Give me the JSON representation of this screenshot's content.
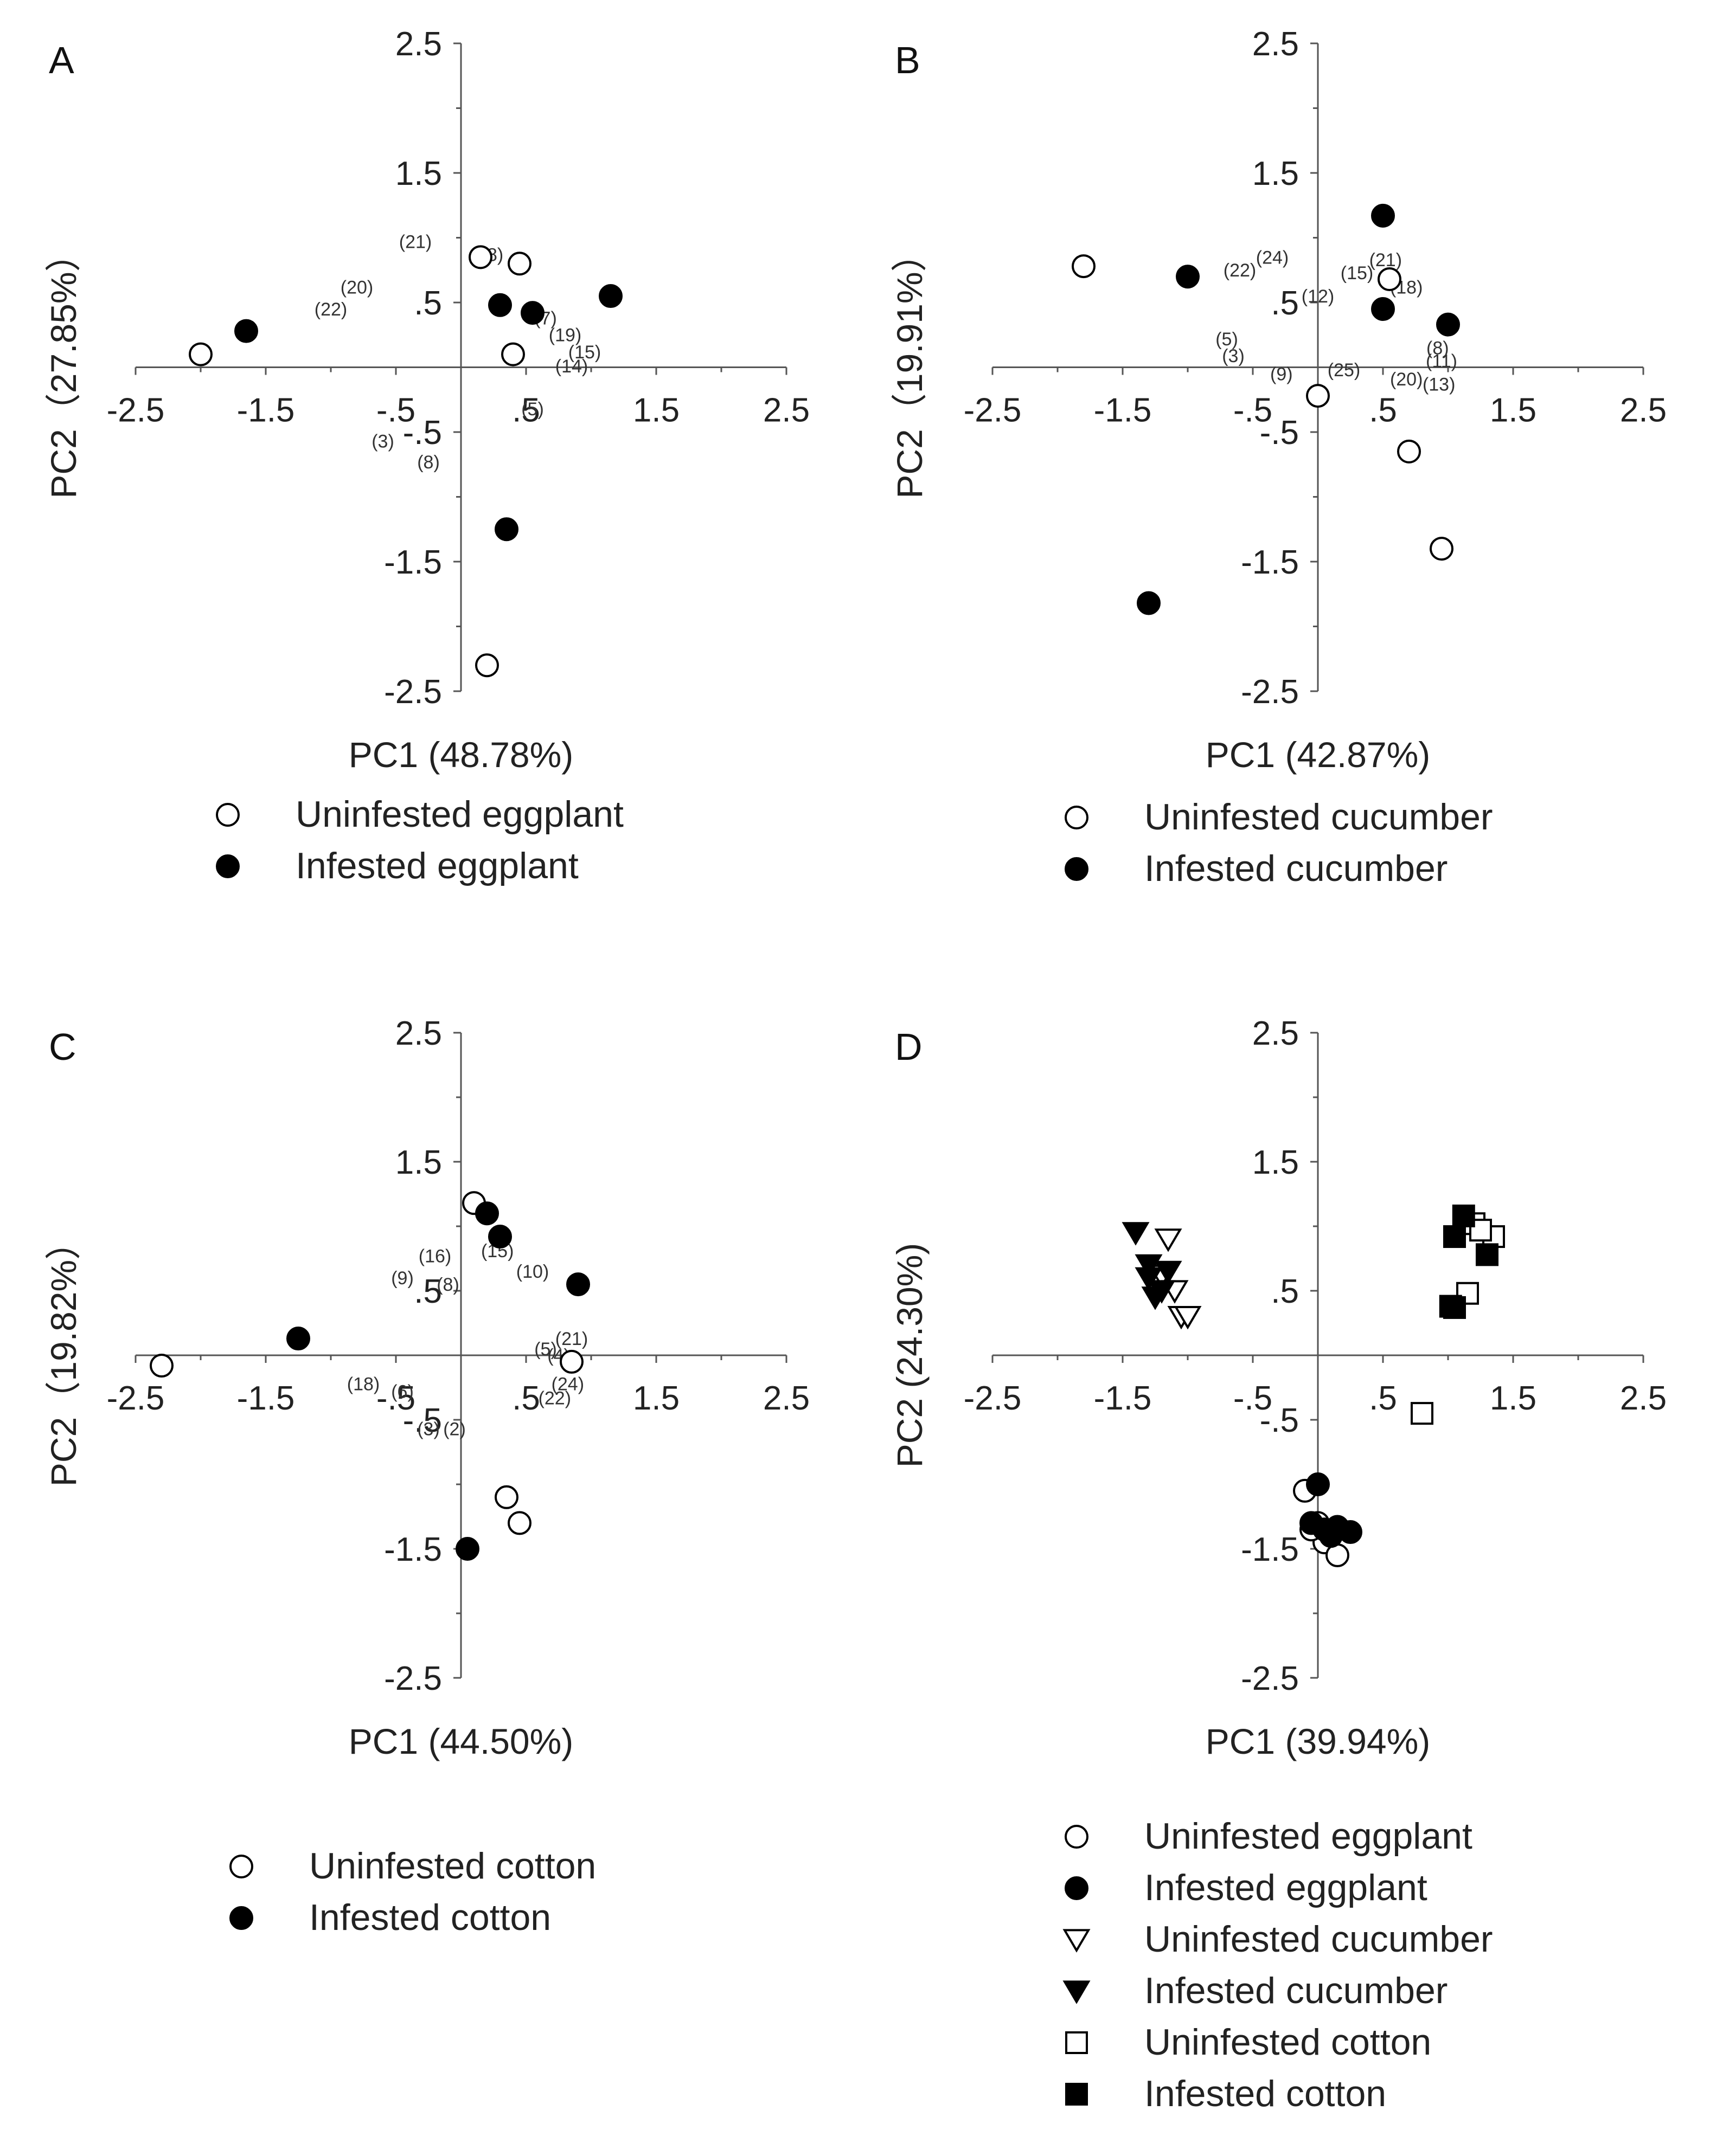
{
  "chart_data": [
    {
      "type": "scatter",
      "panel_label": "A",
      "xlabel": "PC1 (48.78%)",
      "ylabel": "PC2（27.85%）",
      "xlim": [
        -2.5,
        2.5
      ],
      "ylim": [
        -2.5,
        2.5
      ],
      "xticks": [
        "-2.5",
        "-1.5",
        "-.5",
        ".5",
        "1.5",
        "2.5"
      ],
      "yticks": [
        "2.5",
        "1.5",
        ".5",
        "-.5",
        "-1.5",
        "-2.5"
      ],
      "series": [
        {
          "name": "Uninfested eggplant",
          "marker": "circle-open",
          "x": [
            -2.0,
            0.15,
            0.45,
            0.4,
            0.2
          ],
          "y": [
            0.1,
            0.85,
            0.8,
            0.1,
            -2.3
          ]
        },
        {
          "name": "Infested eggplant",
          "marker": "circle-filled",
          "x": [
            -1.65,
            0.3,
            0.55,
            1.15,
            0.35
          ],
          "y": [
            0.28,
            0.48,
            0.42,
            0.55,
            -1.25
          ]
        }
      ],
      "labels": [
        {
          "text": "(21)",
          "x": -0.35,
          "y": 0.92
        },
        {
          "text": "(18)",
          "x": 0.2,
          "y": 0.82
        },
        {
          "text": "(20)",
          "x": -0.8,
          "y": 0.57
        },
        {
          "text": "(22)",
          "x": -1.0,
          "y": 0.4
        },
        {
          "text": "(7)",
          "x": 0.65,
          "y": 0.33
        },
        {
          "text": "(19)",
          "x": 0.8,
          "y": 0.2
        },
        {
          "text": "(15)",
          "x": 0.95,
          "y": 0.07
        },
        {
          "text": "(14)",
          "x": 0.85,
          "y": -0.04
        },
        {
          "text": "(5)",
          "x": 0.55,
          "y": -0.37
        },
        {
          "text": "(3)",
          "x": -0.6,
          "y": -0.62
        },
        {
          "text": "(8)",
          "x": -0.25,
          "y": -0.78
        }
      ]
    },
    {
      "type": "scatter",
      "panel_label": "B",
      "xlabel": "PC1 (42.87%)",
      "ylabel": "PC2（19.91%）",
      "xlim": [
        -2.5,
        2.5
      ],
      "ylim": [
        -2.5,
        2.5
      ],
      "xticks": [
        "-2.5",
        "-1.5",
        "-.5",
        ".5",
        "1.5",
        "2.5"
      ],
      "yticks": [
        "2.5",
        "1.5",
        ".5",
        "-.5",
        "-1.5",
        "-2.5"
      ],
      "series": [
        {
          "name": "Uninfested cucumber",
          "marker": "circle-open",
          "x": [
            -1.8,
            0.55,
            0.0,
            0.7,
            0.95
          ],
          "y": [
            0.78,
            0.68,
            -0.22,
            -0.65,
            -1.4
          ]
        },
        {
          "name": "Infested cucumber",
          "marker": "circle-filled",
          "x": [
            -1.0,
            0.5,
            0.5,
            1.0,
            -1.3
          ],
          "y": [
            0.7,
            1.17,
            0.45,
            0.33,
            -1.82
          ]
        },
        {
          "name": "",
          "marker": "circle-filled",
          "x": [],
          "y": []
        }
      ],
      "labels": [
        {
          "text": "(22)",
          "x": -0.6,
          "y": 0.7
        },
        {
          "text": "(24)",
          "x": -0.35,
          "y": 0.8
        },
        {
          "text": "(15)",
          "x": 0.3,
          "y": 0.68
        },
        {
          "text": "(21)",
          "x": 0.52,
          "y": 0.78
        },
        {
          "text": "(18)",
          "x": 0.68,
          "y": 0.57
        },
        {
          "text": "(12)",
          "x": 0.0,
          "y": 0.5
        },
        {
          "text": "(5)",
          "x": -0.7,
          "y": 0.17
        },
        {
          "text": "(3)",
          "x": -0.65,
          "y": 0.04
        },
        {
          "text": "(9)",
          "x": -0.28,
          "y": -0.1
        },
        {
          "text": "(25)",
          "x": 0.2,
          "y": -0.07
        },
        {
          "text": "(20)",
          "x": 0.68,
          "y": -0.14
        },
        {
          "text": "(13)",
          "x": 0.93,
          "y": -0.18
        },
        {
          "text": "(8)",
          "x": 0.92,
          "y": 0.1
        },
        {
          "text": "(11)",
          "x": 0.95,
          "y": 0.0
        }
      ]
    },
    {
      "type": "scatter",
      "panel_label": "C",
      "xlabel": "PC1 (44.50%)",
      "ylabel": "PC2（19.82%）",
      "xlim": [
        -2.5,
        2.5
      ],
      "ylim": [
        -2.5,
        2.5
      ],
      "xticks": [
        "-2.5",
        "-1.5",
        "-.5",
        ".5",
        "1.5",
        "2.5"
      ],
      "yticks": [
        "2.5",
        "1.5",
        ".5",
        "-.5",
        "-1.5",
        "-2.5"
      ],
      "series": [
        {
          "name": "Uninfested cotton",
          "marker": "circle-open",
          "x": [
            -2.3,
            0.1,
            0.35,
            0.45,
            0.85
          ],
          "y": [
            -0.08,
            1.18,
            -1.1,
            -1.3,
            -0.05
          ]
        },
        {
          "name": "Infested cotton",
          "marker": "circle-filled",
          "x": [
            -1.25,
            0.2,
            0.3,
            0.9,
            0.05
          ],
          "y": [
            0.13,
            1.1,
            0.92,
            0.55,
            -1.5
          ]
        }
      ],
      "labels": [
        {
          "text": "(16)",
          "x": -0.2,
          "y": 0.72
        },
        {
          "text": "(15)",
          "x": 0.28,
          "y": 0.76
        },
        {
          "text": "(10)",
          "x": 0.55,
          "y": 0.6
        },
        {
          "text": "(9)",
          "x": -0.45,
          "y": 0.55
        },
        {
          "text": "(8)",
          "x": -0.1,
          "y": 0.5
        },
        {
          "text": "(21)",
          "x": 0.85,
          "y": 0.08
        },
        {
          "text": "(5)",
          "x": 0.65,
          "y": 0.0
        },
        {
          "text": "(4)",
          "x": 0.75,
          "y": -0.05
        },
        {
          "text": "(18)",
          "x": -0.75,
          "y": -0.27
        },
        {
          "text": "(6)",
          "x": -0.45,
          "y": -0.33
        },
        {
          "text": "(24)",
          "x": 0.82,
          "y": -0.27
        },
        {
          "text": "(22)",
          "x": 0.72,
          "y": -0.38
        },
        {
          "text": "(3)",
          "x": -0.25,
          "y": -0.62
        },
        {
          "text": "(2)",
          "x": -0.05,
          "y": -0.62
        }
      ]
    },
    {
      "type": "scatter",
      "panel_label": "D",
      "xlabel": "PC1 (39.94%)",
      "ylabel": "PC2 (24.30%)",
      "xlim": [
        -2.5,
        2.5
      ],
      "ylim": [
        -2.5,
        2.5
      ],
      "xticks": [
        "-2.5",
        "-1.5",
        "-.5",
        ".5",
        "1.5",
        "2.5"
      ],
      "yticks": [
        "2.5",
        "1.5",
        ".5",
        "-.5",
        "-1.5",
        "-2.5"
      ],
      "series": [
        {
          "name": "Uninfested eggplant",
          "marker": "circle-open",
          "x": [
            -0.1,
            0.0,
            0.05,
            0.15,
            -0.05
          ],
          "y": [
            -1.05,
            -1.3,
            -1.45,
            -1.55,
            -1.35
          ]
        },
        {
          "name": "Infested eggplant",
          "marker": "circle-filled",
          "x": [
            0.0,
            -0.05,
            0.05,
            0.15,
            0.25,
            0.1
          ],
          "y": [
            -1.0,
            -1.3,
            -1.35,
            -1.33,
            -1.37,
            -1.4
          ]
        },
        {
          "name": "Uninfested cucumber",
          "marker": "triangle-down-open",
          "x": [
            -1.15,
            -1.05,
            -1.2,
            -1.0,
            -1.1
          ],
          "y": [
            0.9,
            0.3,
            0.62,
            0.3,
            0.5
          ]
        },
        {
          "name": "Infested cucumber",
          "marker": "triangle-down-filled",
          "x": [
            -1.4,
            -1.3,
            -1.15,
            -1.25,
            -1.2,
            -1.3
          ],
          "y": [
            0.95,
            0.7,
            0.65,
            0.45,
            0.5,
            0.6
          ]
        },
        {
          "name": "Uninfested cotton",
          "marker": "square-open",
          "x": [
            0.8,
            1.2,
            1.35,
            1.25,
            1.15
          ],
          "y": [
            -0.45,
            1.02,
            0.92,
            0.97,
            0.48
          ]
        },
        {
          "name": "Infested cotton",
          "marker": "square-filled",
          "x": [
            1.05,
            1.12,
            1.3,
            1.05,
            1.02
          ],
          "y": [
            0.92,
            1.08,
            0.78,
            0.37,
            0.38
          ]
        }
      ],
      "labels": []
    }
  ]
}
